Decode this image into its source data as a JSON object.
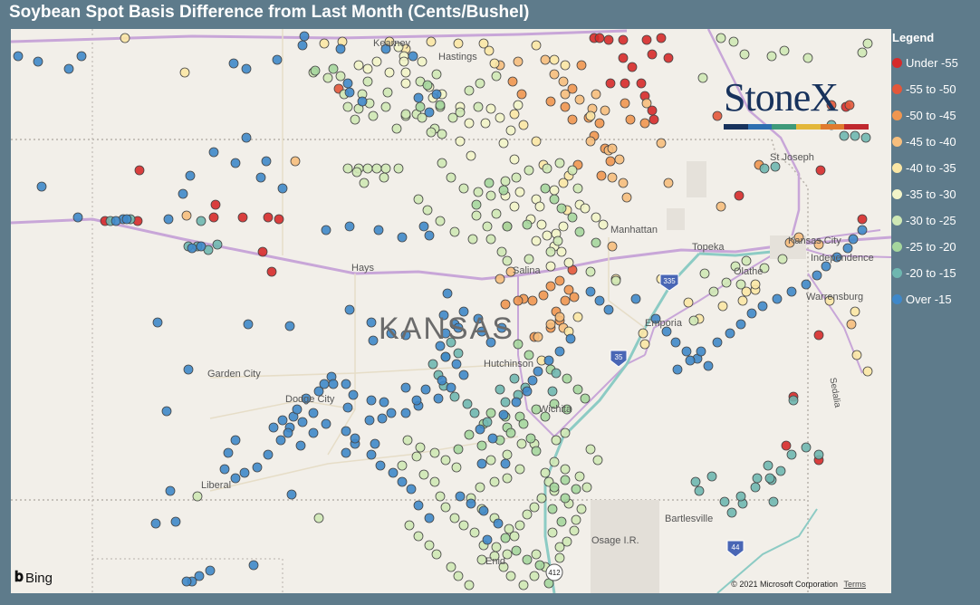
{
  "title": "Soybean Spot Basis Difference from Last Month (Cents/Bushel)",
  "legend": {
    "title": "Legend",
    "items": [
      {
        "label": "Under -55",
        "color": "#d62a2a"
      },
      {
        "label": "-55 to -50",
        "color": "#e3573a"
      },
      {
        "label": "-50 to -45",
        "color": "#ef9650"
      },
      {
        "label": "-45 to -40",
        "color": "#f6be7d"
      },
      {
        "label": "-40 to -35",
        "color": "#fbe7a5"
      },
      {
        "label": "-35 to -30",
        "color": "#f2f4c8"
      },
      {
        "label": "-30 to -25",
        "color": "#cfe8b5"
      },
      {
        "label": "-25 to -20",
        "color": "#a5d69d"
      },
      {
        "label": "-20 to -15",
        "color": "#6fb7b0"
      },
      {
        "label": "Over -15",
        "color": "#3f88c9"
      }
    ]
  },
  "map": {
    "state_label": "KANSAS",
    "cities": [
      {
        "name": "Kearney"
      },
      {
        "name": "Hastings"
      },
      {
        "name": "St Joseph"
      },
      {
        "name": "Manhattan"
      },
      {
        "name": "Topeka"
      },
      {
        "name": "Kansas City"
      },
      {
        "name": "Independence"
      },
      {
        "name": "Olathe"
      },
      {
        "name": "Hays"
      },
      {
        "name": "Salina"
      },
      {
        "name": "Warrensburg"
      },
      {
        "name": "Emporia"
      },
      {
        "name": "Garden City"
      },
      {
        "name": "Hutchinson"
      },
      {
        "name": "Dodge City"
      },
      {
        "name": "Wichita"
      },
      {
        "name": "Liberal"
      },
      {
        "name": "Bartlesville"
      },
      {
        "name": "Osage I.R."
      },
      {
        "name": "Enid"
      },
      {
        "name": "Sedalia"
      }
    ],
    "shields": [
      "335",
      "35",
      "44",
      "412"
    ],
    "attribution": "© 2021 Microsoft Corporation",
    "terms": "Terms",
    "provider": "Bing"
  },
  "logo": {
    "text": "StoneX",
    "bar_colors": [
      "#17325c",
      "#2d6fb0",
      "#3e9a7a",
      "#e3b73a",
      "#e07a2e",
      "#c0282e"
    ]
  }
}
